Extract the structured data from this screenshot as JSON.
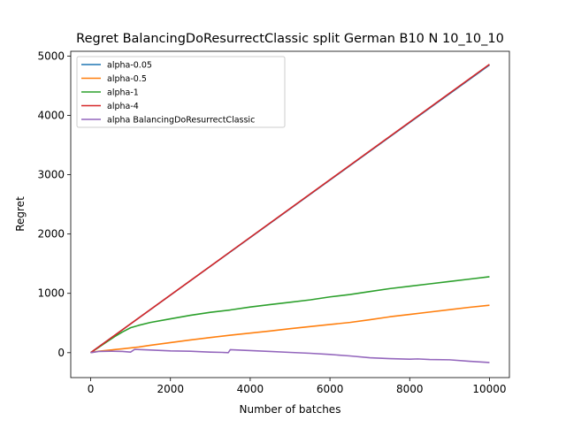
{
  "chart_data": {
    "type": "line",
    "title": "Regret BalancingDoResurrectClassic split German B10 N 10_10_10",
    "xlabel": "Number of batches",
    "ylabel": "Regret",
    "xlim": [
      -500,
      10500
    ],
    "ylim": [
      -420,
      5080
    ],
    "xticks": [
      0,
      2000,
      4000,
      6000,
      8000,
      10000
    ],
    "yticks": [
      0,
      1000,
      2000,
      3000,
      4000,
      5000
    ],
    "grid": false,
    "legend_position": "upper left",
    "series": [
      {
        "name": "alpha-0.05",
        "color": "#1f77b4",
        "x": [
          0,
          10000
        ],
        "y": [
          0,
          4850
        ]
      },
      {
        "name": "alpha-0.5",
        "color": "#ff7f0e",
        "x": [
          0,
          200,
          500,
          800,
          1000,
          1200,
          1500,
          2000,
          2500,
          3000,
          3500,
          4000,
          4500,
          5000,
          5500,
          6000,
          6500,
          7000,
          7500,
          8000,
          8500,
          9000,
          9500,
          10000
        ],
        "y": [
          0,
          25,
          45,
          65,
          80,
          95,
          125,
          170,
          215,
          255,
          295,
          330,
          365,
          405,
          440,
          475,
          510,
          555,
          605,
          645,
          685,
          725,
          765,
          800
        ]
      },
      {
        "name": "alpha-1",
        "color": "#2ca02c",
        "x": [
          0,
          200,
          400,
          600,
          800,
          1000,
          1200,
          1500,
          2000,
          2500,
          3000,
          3500,
          4000,
          4500,
          5000,
          5500,
          6000,
          6500,
          7000,
          7500,
          8000,
          8500,
          9000,
          9500,
          10000
        ],
        "y": [
          0,
          90,
          180,
          270,
          350,
          420,
          460,
          510,
          570,
          630,
          680,
          720,
          770,
          810,
          850,
          890,
          940,
          980,
          1030,
          1080,
          1120,
          1160,
          1200,
          1240,
          1280
        ]
      },
      {
        "name": "alpha-4",
        "color": "#d62728",
        "x": [
          0,
          10000
        ],
        "y": [
          0,
          4860
        ]
      },
      {
        "name": "alpha BalancingDoResurrectClassic",
        "color": "#9467bd",
        "x": [
          0,
          200,
          500,
          800,
          1000,
          1100,
          1300,
          1500,
          2000,
          2500,
          2800,
          3000,
          3300,
          3450,
          3500,
          4000,
          4500,
          5000,
          5500,
          6000,
          6500,
          7000,
          7500,
          8000,
          8200,
          8500,
          9000,
          9500,
          10000
        ],
        "y": [
          0,
          20,
          25,
          20,
          10,
          55,
          50,
          45,
          30,
          25,
          15,
          10,
          5,
          0,
          50,
          35,
          20,
          5,
          -10,
          -30,
          -55,
          -85,
          -100,
          -110,
          -105,
          -115,
          -120,
          -145,
          -165
        ]
      }
    ]
  }
}
